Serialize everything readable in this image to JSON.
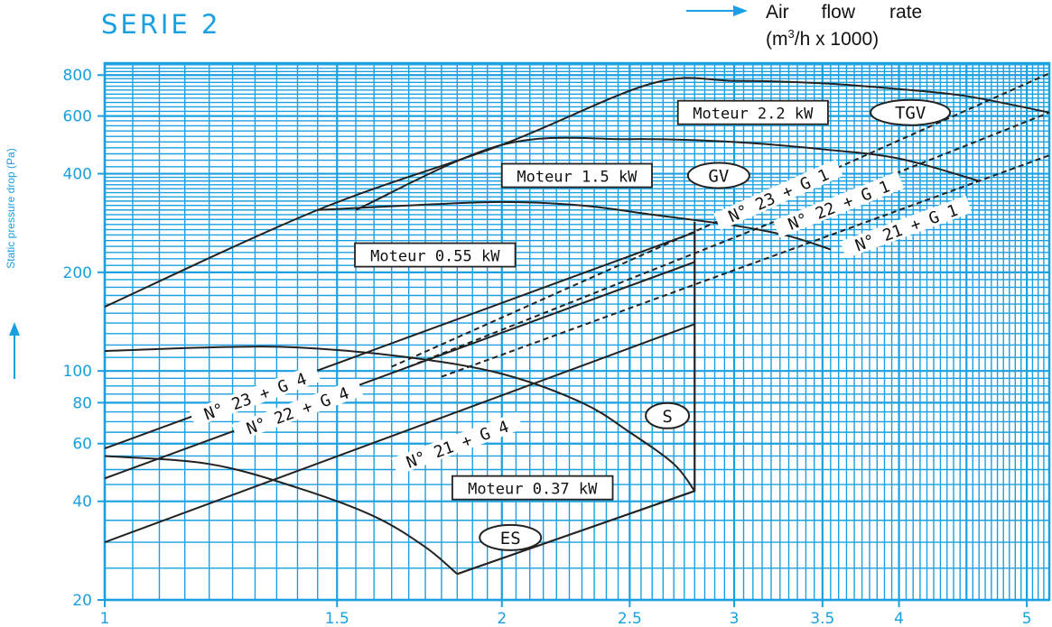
{
  "header": {
    "serie_label": "SERIE 2",
    "x_axis_title_line1": [
      "Air",
      "flow",
      "rate"
    ],
    "x_axis_title_line2_prefix": "(m",
    "x_axis_title_line2_sup": "3",
    "x_axis_title_line2_suffix": "/h x 1000)",
    "y_axis_title": "Static pressure drop (Pa)"
  },
  "colors": {
    "grid": "#1aa0e0",
    "curves": "#222222",
    "background": "#ffffff",
    "label_text": "#111111"
  },
  "chart_data": {
    "type": "line",
    "title": "SERIE 2",
    "xlabel": "Air flow rate (m3/h x 1000)",
    "ylabel": "Static pressure drop (Pa)",
    "x_scale": "log",
    "y_scale": "log",
    "xlim": [
      1,
      5.2
    ],
    "ylim": [
      20,
      870
    ],
    "x_ticks": [
      {
        "v": 1,
        "label": "1"
      },
      {
        "v": 1.5,
        "label": "1.5"
      },
      {
        "v": 2,
        "label": "2"
      },
      {
        "v": 2.5,
        "label": "2.5"
      },
      {
        "v": 3,
        "label": "3"
      },
      {
        "v": 3.5,
        "label": "3.5"
      },
      {
        "v": 4,
        "label": "4"
      },
      {
        "v": 5,
        "label": "5"
      }
    ],
    "y_ticks": [
      {
        "v": 20,
        "label": "20"
      },
      {
        "v": 40,
        "label": "40"
      },
      {
        "v": 60,
        "label": "60"
      },
      {
        "v": 80,
        "label": "80"
      },
      {
        "v": 100,
        "label": "100"
      },
      {
        "v": 200,
        "label": "200"
      },
      {
        "v": 400,
        "label": "400"
      },
      {
        "v": 600,
        "label": "600"
      },
      {
        "v": 800,
        "label": "800"
      }
    ],
    "grid": true,
    "fan_curves": [
      {
        "name": "TGV",
        "motor": "Moteur 2.2 kW",
        "points": [
          [
            1.0,
            157
          ],
          [
            1.45,
            310
          ],
          [
            2.0,
            490
          ],
          [
            2.6,
            755
          ],
          [
            3.0,
            768
          ],
          [
            3.5,
            755
          ],
          [
            4.0,
            725
          ],
          [
            4.5,
            690
          ],
          [
            5.2,
            615
          ]
        ]
      },
      {
        "name": "GV",
        "motor": "Moteur 1.5 kW",
        "points": [
          [
            1.55,
            310
          ],
          [
            2.0,
            490
          ],
          [
            2.5,
            510
          ],
          [
            3.0,
            500
          ],
          [
            3.5,
            475
          ],
          [
            4.0,
            445
          ],
          [
            4.6,
            380
          ]
        ]
      },
      {
        "name": "Moteur 0.55 kW",
        "motor": "Moteur 0.55 kW",
        "points": [
          [
            1.45,
            310
          ],
          [
            1.7,
            320
          ],
          [
            2.0,
            328
          ],
          [
            2.3,
            320
          ],
          [
            2.6,
            300
          ],
          [
            3.0,
            278
          ],
          [
            3.3,
            258
          ],
          [
            3.55,
            235
          ]
        ]
      },
      {
        "name": "S",
        "motor": "",
        "points": [
          [
            1.0,
            115
          ],
          [
            1.2,
            118
          ],
          [
            1.4,
            118
          ],
          [
            1.7,
            110
          ],
          [
            2.0,
            98
          ],
          [
            2.3,
            80
          ],
          [
            2.5,
            65
          ],
          [
            2.7,
            52
          ],
          [
            2.8,
            43
          ]
        ]
      },
      {
        "name": "ES",
        "motor": "Moteur 0.37 kW",
        "points": [
          [
            1.0,
            55
          ],
          [
            1.2,
            52
          ],
          [
            1.4,
            44
          ],
          [
            1.6,
            36
          ],
          [
            1.75,
            29
          ],
          [
            1.85,
            24
          ]
        ]
      }
    ],
    "motor_limits": [
      {
        "name": "0.37 kW boundary",
        "points": [
          [
            1.85,
            24
          ],
          [
            2.8,
            43
          ],
          [
            2.8,
            285
          ]
        ]
      }
    ],
    "system_lines": [
      {
        "name": "N° 21 + G 4",
        "style": "solid",
        "points": [
          [
            1.0,
            30
          ],
          [
            2.8,
            139
          ]
        ]
      },
      {
        "name": "N° 22 + G 4",
        "style": "solid",
        "points": [
          [
            1.0,
            47
          ],
          [
            2.8,
            215
          ]
        ]
      },
      {
        "name": "N° 23 + G 4",
        "style": "solid",
        "points": [
          [
            1.0,
            58
          ],
          [
            2.8,
            265
          ]
        ]
      },
      {
        "name": "N° 21 + G 1",
        "style": "dashed",
        "points": [
          [
            1.8,
            96
          ],
          [
            5.2,
            455
          ]
        ]
      },
      {
        "name": "N° 22 + G 1",
        "style": "dashed",
        "points": [
          [
            1.7,
            103
          ],
          [
            5.2,
            615
          ]
        ]
      },
      {
        "name": "N° 23 + G 1",
        "style": "dashed",
        "points": [
          [
            1.65,
            103
          ],
          [
            5.2,
            810
          ]
        ]
      }
    ],
    "labels": [
      {
        "text": "Moteur 2.2 kW",
        "x": 3.1,
        "y": 615,
        "type": "box"
      },
      {
        "text": "TGV",
        "x": 4.08,
        "y": 615,
        "type": "oval"
      },
      {
        "text": "Moteur 1.5 kW",
        "x": 2.28,
        "y": 395,
        "type": "box"
      },
      {
        "text": "GV",
        "x": 2.92,
        "y": 395,
        "type": "oval"
      },
      {
        "text": "Moteur 0.55 kW",
        "x": 1.78,
        "y": 226,
        "type": "box"
      },
      {
        "text": "S",
        "x": 2.67,
        "y": 73,
        "type": "oval"
      },
      {
        "text": "Moteur 0.37 kW",
        "x": 2.11,
        "y": 44,
        "type": "box"
      },
      {
        "text": "ES",
        "x": 2.03,
        "y": 31,
        "type": "oval"
      },
      {
        "text": "N° 23 + G 4",
        "x": 1.3,
        "y": 84,
        "type": "line-label",
        "angle_of": "N° 23 + G 4"
      },
      {
        "text": "N° 22 + G 4",
        "x": 1.4,
        "y": 76,
        "type": "line-label",
        "angle_of": "N° 22 + G 4"
      },
      {
        "text": "N° 21 + G 4",
        "x": 1.85,
        "y": 60,
        "type": "line-label",
        "angle_of": "N° 21 + G 4"
      },
      {
        "text": "N° 23 + G 1",
        "x": 3.24,
        "y": 345,
        "type": "line-label",
        "angle_of": "N° 23 + G 1"
      },
      {
        "text": "N° 22 + G 1",
        "x": 3.6,
        "y": 322,
        "type": "line-label",
        "angle_of": "N° 22 + G 1"
      },
      {
        "text": "N° 21 + G 1",
        "x": 4.05,
        "y": 275,
        "type": "line-label",
        "angle_of": "N° 21 + G 1"
      }
    ]
  }
}
